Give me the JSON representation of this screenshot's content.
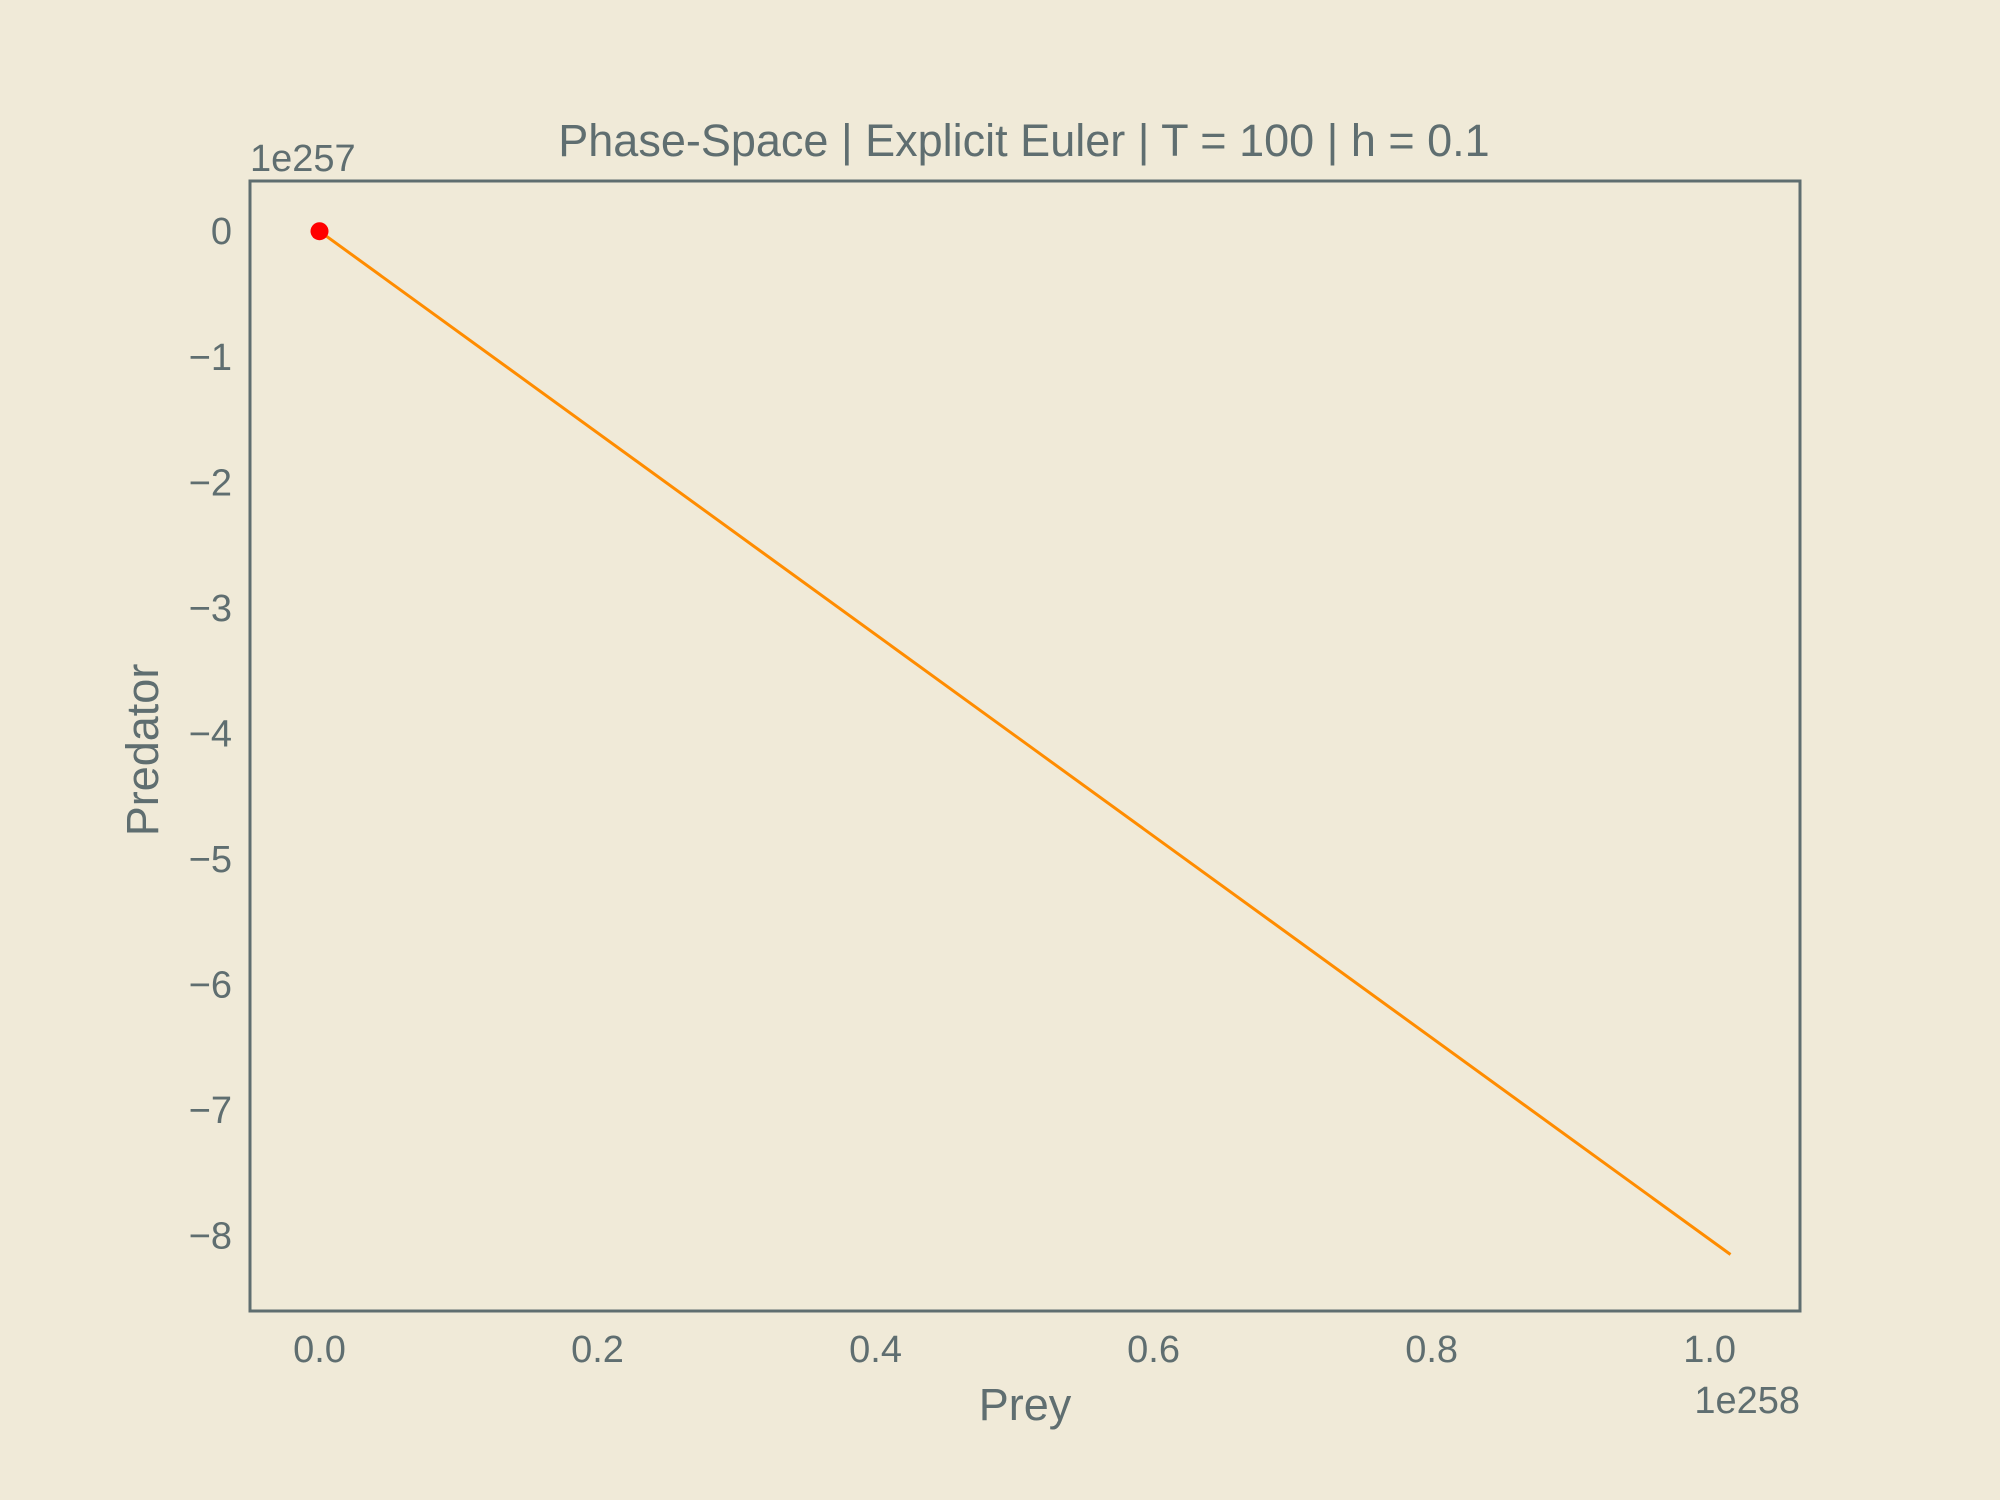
{
  "colors": {
    "background": "#f0ead8",
    "axes": "#5f6e70",
    "trajectory": "#ff8c00",
    "start_marker": "#ff0000"
  },
  "chart_data": {
    "type": "line",
    "title": "Phase-Space | Explicit Euler | T = 100 | h = 0.1",
    "xlabel": "Prey",
    "ylabel": "Predator",
    "x_offset_label": "1e258",
    "y_offset_label": "1e257",
    "xlim": [
      -0.05,
      1.065
    ],
    "ylim": [
      -8.6,
      0.4
    ],
    "x_ticks": [
      0.0,
      0.2,
      0.4,
      0.6,
      0.8,
      1.0
    ],
    "x_tick_labels": [
      "0.0",
      "0.2",
      "0.4",
      "0.6",
      "0.8",
      "1.0"
    ],
    "y_ticks": [
      0,
      -1,
      -2,
      -3,
      -4,
      -5,
      -6,
      -7,
      -8
    ],
    "y_tick_labels": [
      "0",
      "−1",
      "−2",
      "−3",
      "−4",
      "−5",
      "−6",
      "−7",
      "−8"
    ],
    "grid": false,
    "legend": "none",
    "series": [
      {
        "x": [
          0.0,
          1.015
        ],
        "y": [
          0.0,
          -8.15
        ]
      }
    ],
    "start_point": {
      "x": 0.0,
      "y": 0.0
    }
  }
}
